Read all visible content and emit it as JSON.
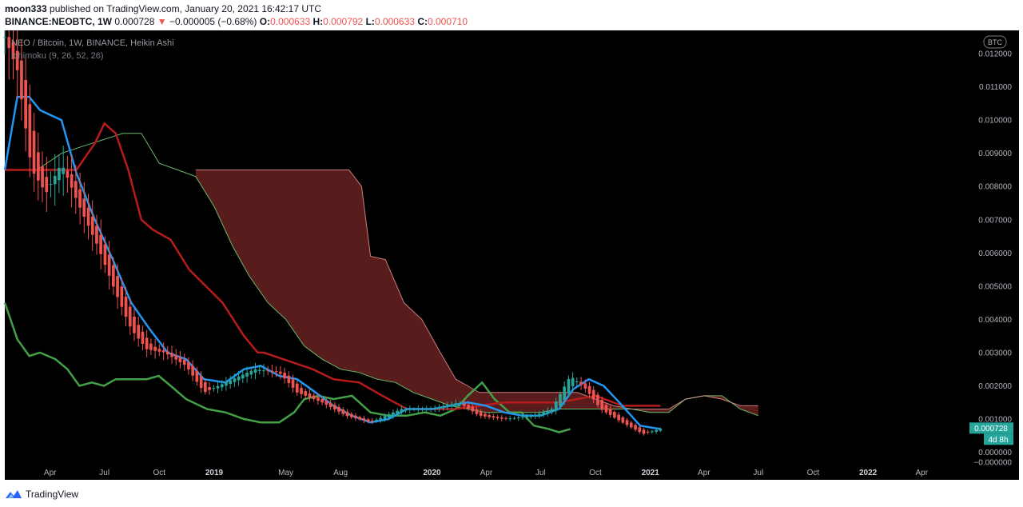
{
  "header": {
    "author": "moon333",
    "published_text": "published on TradingView.com, January 20, 2021 16:42:17 UTC",
    "symbol": "BINANCE:NEOBTC, 1W",
    "last_value": "0.000728",
    "change_arrow": "▼",
    "change_text": "−0.000005 (−0.68%)",
    "o_label": "O:",
    "o_value": "0.000633",
    "h_label": "H:",
    "h_value": "0.000792",
    "l_label": "L:",
    "l_value": "0.000633",
    "c_label": "C:",
    "c_value": "0.000710"
  },
  "legend": {
    "series_title": "NEO / Bitcoin, 1W, BINANCE, Heikin Ashi",
    "indicator": "Ichimoku (9, 26, 52, 26)"
  },
  "badges": {
    "currency": "BTC",
    "price": "0.000728",
    "countdown": "4d 8h"
  },
  "footer": {
    "brand": "TradingView"
  },
  "colors": {
    "background": "#000000",
    "bull_candle": "#26a69a",
    "bear_candle": "#ef5350",
    "conversion_line": "#2196f3",
    "base_line": "#b71c1c",
    "lagging_span": "#43a047",
    "cloud_bearish": "#5e1e1e",
    "price_badge": "#26a69a"
  },
  "chart_data": {
    "type": "candlestick",
    "title": "NEO / Bitcoin, 1W, BINANCE, Heikin Ashi",
    "y_scale": "linear",
    "ylim": [
      -0.0003,
      0.0127
    ],
    "y_ticks": [
      "0.012000",
      "0.011000",
      "0.010000",
      "0.009000",
      "0.008000",
      "0.007000",
      "0.006000",
      "0.005000",
      "0.004000",
      "0.003000",
      "0.002000",
      "0.001000",
      "0.000000",
      "−0.000000"
    ],
    "y_tick_values": [
      0.012,
      0.011,
      0.01,
      0.009,
      0.008,
      0.007,
      0.006,
      0.005,
      0.004,
      0.003,
      0.002,
      0.001,
      0.0,
      -0.0003
    ],
    "x_range": [
      "2018-01-15",
      "2022-06-20"
    ],
    "x_ticks": [
      {
        "label": "Apr",
        "date": "2018-04-01",
        "bold": false
      },
      {
        "label": "Jul",
        "date": "2018-07-01",
        "bold": false
      },
      {
        "label": "Oct",
        "date": "2018-10-01",
        "bold": false
      },
      {
        "label": "2019",
        "date": "2019-01-01",
        "bold": true
      },
      {
        "label": "May",
        "date": "2019-05-01",
        "bold": false
      },
      {
        "label": "Aug",
        "date": "2019-08-01",
        "bold": false
      },
      {
        "label": "2020",
        "date": "2020-01-01",
        "bold": true
      },
      {
        "label": "Apr",
        "date": "2020-04-01",
        "bold": false
      },
      {
        "label": "Jul",
        "date": "2020-07-01",
        "bold": false
      },
      {
        "label": "Oct",
        "date": "2020-10-01",
        "bold": false
      },
      {
        "label": "2021",
        "date": "2021-01-01",
        "bold": true
      },
      {
        "label": "Apr",
        "date": "2021-04-01",
        "bold": false
      },
      {
        "label": "Jul",
        "date": "2021-07-01",
        "bold": false
      },
      {
        "label": "Oct",
        "date": "2021-10-01",
        "bold": false
      },
      {
        "label": "2022",
        "date": "2022-01-01",
        "bold": true
      },
      {
        "label": "Apr",
        "date": "2022-04-01",
        "bold": false
      }
    ],
    "candle_anchors": [
      {
        "date": "2018-01-15",
        "close": 0.0125
      },
      {
        "date": "2018-02-05",
        "close": 0.0115
      },
      {
        "date": "2018-03-01",
        "close": 0.0085
      },
      {
        "date": "2018-03-25",
        "close": 0.0078
      },
      {
        "date": "2018-04-20",
        "close": 0.0087
      },
      {
        "date": "2018-05-20",
        "close": 0.0074
      },
      {
        "date": "2018-06-20",
        "close": 0.0062
      },
      {
        "date": "2018-07-20",
        "close": 0.0048
      },
      {
        "date": "2018-08-15",
        "close": 0.0037
      },
      {
        "date": "2018-09-10",
        "close": 0.0031
      },
      {
        "date": "2018-10-10",
        "close": 0.003
      },
      {
        "date": "2018-11-15",
        "close": 0.0026
      },
      {
        "date": "2018-12-15",
        "close": 0.0018
      },
      {
        "date": "2019-01-20",
        "close": 0.0021
      },
      {
        "date": "2019-03-10",
        "close": 0.0025
      },
      {
        "date": "2019-04-20",
        "close": 0.0024
      },
      {
        "date": "2019-05-20",
        "close": 0.0018
      },
      {
        "date": "2019-07-01",
        "close": 0.0015
      },
      {
        "date": "2019-08-10",
        "close": 0.0011
      },
      {
        "date": "2019-09-20",
        "close": 0.0009
      },
      {
        "date": "2019-11-10",
        "close": 0.0013
      },
      {
        "date": "2020-01-01",
        "close": 0.0013
      },
      {
        "date": "2020-02-15",
        "close": 0.0015
      },
      {
        "date": "2020-03-20",
        "close": 0.0011
      },
      {
        "date": "2020-05-01",
        "close": 0.001
      },
      {
        "date": "2020-06-20",
        "close": 0.0011
      },
      {
        "date": "2020-07-20",
        "close": 0.0013
      },
      {
        "date": "2020-08-20",
        "close": 0.0023
      },
      {
        "date": "2020-09-15",
        "close": 0.0019
      },
      {
        "date": "2020-10-10",
        "close": 0.0013
      },
      {
        "date": "2020-11-15",
        "close": 0.0009
      },
      {
        "date": "2020-12-20",
        "close": 0.00055
      },
      {
        "date": "2021-01-18",
        "close": 0.00071
      }
    ],
    "conversion_line": [
      {
        "date": "2018-01-15",
        "y": 0.0085
      },
      {
        "date": "2018-02-05",
        "y": 0.0107
      },
      {
        "date": "2018-02-25",
        "y": 0.0107
      },
      {
        "date": "2018-03-15",
        "y": 0.0103
      },
      {
        "date": "2018-04-20",
        "y": 0.01
      },
      {
        "date": "2018-05-15",
        "y": 0.0084
      },
      {
        "date": "2018-06-15",
        "y": 0.007
      },
      {
        "date": "2018-07-15",
        "y": 0.0058
      },
      {
        "date": "2018-08-15",
        "y": 0.0045
      },
      {
        "date": "2018-09-15",
        "y": 0.0037
      },
      {
        "date": "2018-10-15",
        "y": 0.003
      },
      {
        "date": "2018-11-15",
        "y": 0.0028
      },
      {
        "date": "2018-12-15",
        "y": 0.0022
      },
      {
        "date": "2019-01-20",
        "y": 0.0021
      },
      {
        "date": "2019-02-20",
        "y": 0.0025
      },
      {
        "date": "2019-03-20",
        "y": 0.0026
      },
      {
        "date": "2019-04-20",
        "y": 0.0023
      },
      {
        "date": "2019-05-20",
        "y": 0.0022
      },
      {
        "date": "2019-06-20",
        "y": 0.0018
      },
      {
        "date": "2019-07-20",
        "y": 0.0014
      },
      {
        "date": "2019-08-20",
        "y": 0.0011
      },
      {
        "date": "2019-09-20",
        "y": 0.0009
      },
      {
        "date": "2019-10-20",
        "y": 0.001
      },
      {
        "date": "2019-11-20",
        "y": 0.0013
      },
      {
        "date": "2020-01-01",
        "y": 0.0013
      },
      {
        "date": "2020-02-01",
        "y": 0.0014
      },
      {
        "date": "2020-03-01",
        "y": 0.0015
      },
      {
        "date": "2020-04-01",
        "y": 0.0014
      },
      {
        "date": "2020-05-01",
        "y": 0.0012
      },
      {
        "date": "2020-06-01",
        "y": 0.0011
      },
      {
        "date": "2020-07-01",
        "y": 0.0011
      },
      {
        "date": "2020-08-01",
        "y": 0.0013
      },
      {
        "date": "2020-08-25",
        "y": 0.0019
      },
      {
        "date": "2020-09-20",
        "y": 0.0022
      },
      {
        "date": "2020-10-15",
        "y": 0.002
      },
      {
        "date": "2020-11-10",
        "y": 0.0015
      },
      {
        "date": "2020-12-15",
        "y": 0.0008
      },
      {
        "date": "2021-01-18",
        "y": 0.0007
      }
    ],
    "base_line": [
      {
        "date": "2018-01-15",
        "y": 0.0085
      },
      {
        "date": "2018-05-15",
        "y": 0.0085
      },
      {
        "date": "2018-06-15",
        "y": 0.0093
      },
      {
        "date": "2018-07-01",
        "y": 0.0099
      },
      {
        "date": "2018-07-20",
        "y": 0.0096
      },
      {
        "date": "2018-08-10",
        "y": 0.0085
      },
      {
        "date": "2018-09-01",
        "y": 0.007
      },
      {
        "date": "2018-09-20",
        "y": 0.0067
      },
      {
        "date": "2018-10-20",
        "y": 0.0064
      },
      {
        "date": "2018-11-20",
        "y": 0.0055
      },
      {
        "date": "2019-01-15",
        "y": 0.0045
      },
      {
        "date": "2019-02-20",
        "y": 0.0035
      },
      {
        "date": "2019-03-15",
        "y": 0.003
      },
      {
        "date": "2019-03-25",
        "y": 0.003
      },
      {
        "date": "2019-06-15",
        "y": 0.0025
      },
      {
        "date": "2019-07-20",
        "y": 0.0022
      },
      {
        "date": "2019-09-01",
        "y": 0.0021
      },
      {
        "date": "2019-10-10",
        "y": 0.0017
      },
      {
        "date": "2019-11-20",
        "y": 0.0013
      },
      {
        "date": "2020-02-10",
        "y": 0.0013
      },
      {
        "date": "2020-05-01",
        "y": 0.0015
      },
      {
        "date": "2020-08-01",
        "y": 0.0015
      },
      {
        "date": "2020-10-01",
        "y": 0.0017
      },
      {
        "date": "2020-11-15",
        "y": 0.0014
      },
      {
        "date": "2021-01-18",
        "y": 0.0014
      }
    ],
    "lagging_span": [
      {
        "date": "2018-01-15",
        "y": 0.0045
      },
      {
        "date": "2018-02-05",
        "y": 0.0034
      },
      {
        "date": "2018-02-25",
        "y": 0.0029
      },
      {
        "date": "2018-03-15",
        "y": 0.003
      },
      {
        "date": "2018-04-10",
        "y": 0.0028
      },
      {
        "date": "2018-04-30",
        "y": 0.0025
      },
      {
        "date": "2018-05-20",
        "y": 0.002
      },
      {
        "date": "2018-06-10",
        "y": 0.0021
      },
      {
        "date": "2018-06-30",
        "y": 0.002
      },
      {
        "date": "2018-07-20",
        "y": 0.0022
      },
      {
        "date": "2018-08-15",
        "y": 0.0022
      },
      {
        "date": "2018-09-10",
        "y": 0.0022
      },
      {
        "date": "2018-09-30",
        "y": 0.0023
      },
      {
        "date": "2018-10-20",
        "y": 0.002
      },
      {
        "date": "2018-11-15",
        "y": 0.0016
      },
      {
        "date": "2018-12-20",
        "y": 0.0013
      },
      {
        "date": "2019-01-20",
        "y": 0.0012
      },
      {
        "date": "2019-02-20",
        "y": 0.001
      },
      {
        "date": "2019-03-20",
        "y": 0.0009
      },
      {
        "date": "2019-04-20",
        "y": 0.0009
      },
      {
        "date": "2019-05-15",
        "y": 0.0012
      },
      {
        "date": "2019-06-01",
        "y": 0.0016
      },
      {
        "date": "2019-06-25",
        "y": 0.0017
      },
      {
        "date": "2019-07-20",
        "y": 0.0016
      },
      {
        "date": "2019-08-20",
        "y": 0.0017
      },
      {
        "date": "2019-09-20",
        "y": 0.0012
      },
      {
        "date": "2019-10-20",
        "y": 0.0011
      },
      {
        "date": "2019-11-20",
        "y": 0.0011
      },
      {
        "date": "2019-12-20",
        "y": 0.0012
      },
      {
        "date": "2020-01-15",
        "y": 0.0011
      },
      {
        "date": "2020-02-10",
        "y": 0.0013
      },
      {
        "date": "2020-03-01",
        "y": 0.0017
      },
      {
        "date": "2020-03-25",
        "y": 0.0021
      },
      {
        "date": "2020-04-15",
        "y": 0.0016
      },
      {
        "date": "2020-05-10",
        "y": 0.0012
      },
      {
        "date": "2020-05-30",
        "y": 0.0012
      },
      {
        "date": "2020-06-20",
        "y": 0.0008
      },
      {
        "date": "2020-07-15",
        "y": 0.0007
      },
      {
        "date": "2020-08-01",
        "y": 0.0006
      },
      {
        "date": "2020-08-20",
        "y": 0.0007
      }
    ],
    "span_a": [
      {
        "date": "2018-03-10",
        "y": 0.0085
      },
      {
        "date": "2018-04-20",
        "y": 0.009
      },
      {
        "date": "2018-06-10",
        "y": 0.0093
      },
      {
        "date": "2018-08-01",
        "y": 0.0096
      },
      {
        "date": "2018-09-01",
        "y": 0.0096
      },
      {
        "date": "2018-10-01",
        "y": 0.0087
      },
      {
        "date": "2018-11-01",
        "y": 0.0085
      },
      {
        "date": "2018-12-01",
        "y": 0.0083
      },
      {
        "date": "2019-01-01",
        "y": 0.0074
      },
      {
        "date": "2019-02-01",
        "y": 0.0062
      },
      {
        "date": "2019-03-01",
        "y": 0.0053
      },
      {
        "date": "2019-04-01",
        "y": 0.0045
      },
      {
        "date": "2019-05-01",
        "y": 0.004
      },
      {
        "date": "2019-06-01",
        "y": 0.0032
      },
      {
        "date": "2019-07-01",
        "y": 0.0028
      },
      {
        "date": "2019-08-01",
        "y": 0.0025
      },
      {
        "date": "2019-09-01",
        "y": 0.0024
      },
      {
        "date": "2019-10-01",
        "y": 0.0022
      },
      {
        "date": "2019-11-01",
        "y": 0.0021
      },
      {
        "date": "2019-12-01",
        "y": 0.0018
      },
      {
        "date": "2020-01-01",
        "y": 0.0016
      },
      {
        "date": "2020-02-01",
        "y": 0.0014
      },
      {
        "date": "2020-03-01",
        "y": 0.0013
      },
      {
        "date": "2020-04-01",
        "y": 0.0012
      },
      {
        "date": "2020-05-01",
        "y": 0.0012
      },
      {
        "date": "2020-06-01",
        "y": 0.0012
      },
      {
        "date": "2020-07-01",
        "y": 0.0012
      },
      {
        "date": "2020-08-01",
        "y": 0.0013
      },
      {
        "date": "2020-09-01",
        "y": 0.0013
      },
      {
        "date": "2020-10-01",
        "y": 0.0013
      },
      {
        "date": "2020-11-01",
        "y": 0.0013
      },
      {
        "date": "2020-12-01",
        "y": 0.0013
      },
      {
        "date": "2021-01-01",
        "y": 0.0012
      },
      {
        "date": "2021-02-01",
        "y": 0.0012
      },
      {
        "date": "2021-03-01",
        "y": 0.0016
      },
      {
        "date": "2021-04-01",
        "y": 0.0017
      },
      {
        "date": "2021-05-01",
        "y": 0.0017
      },
      {
        "date": "2021-06-01",
        "y": 0.0013
      },
      {
        "date": "2021-07-01",
        "y": 0.0011
      }
    ],
    "span_b": [
      {
        "date": "2018-12-01",
        "y": 0.0085
      },
      {
        "date": "2019-06-01",
        "y": 0.0085
      },
      {
        "date": "2019-08-15",
        "y": 0.0085
      },
      {
        "date": "2019-09-05",
        "y": 0.008
      },
      {
        "date": "2019-09-20",
        "y": 0.0059
      },
      {
        "date": "2019-10-15",
        "y": 0.0058
      },
      {
        "date": "2019-11-15",
        "y": 0.0045
      },
      {
        "date": "2019-12-15",
        "y": 0.004
      },
      {
        "date": "2020-01-15",
        "y": 0.003
      },
      {
        "date": "2020-02-10",
        "y": 0.0022
      },
      {
        "date": "2020-03-01",
        "y": 0.002
      },
      {
        "date": "2020-03-20",
        "y": 0.0018
      },
      {
        "date": "2020-06-01",
        "y": 0.0018
      },
      {
        "date": "2020-08-01",
        "y": 0.0018
      },
      {
        "date": "2020-09-01",
        "y": 0.0018
      },
      {
        "date": "2020-10-01",
        "y": 0.0016
      },
      {
        "date": "2020-11-01",
        "y": 0.0014
      },
      {
        "date": "2020-12-01",
        "y": 0.0013
      },
      {
        "date": "2021-01-01",
        "y": 0.0013
      },
      {
        "date": "2021-02-01",
        "y": 0.0013
      },
      {
        "date": "2021-03-01",
        "y": 0.0016
      },
      {
        "date": "2021-04-01",
        "y": 0.0017
      },
      {
        "date": "2021-05-01",
        "y": 0.0016
      },
      {
        "date": "2021-06-01",
        "y": 0.0014
      },
      {
        "date": "2021-07-01",
        "y": 0.0014
      }
    ]
  }
}
